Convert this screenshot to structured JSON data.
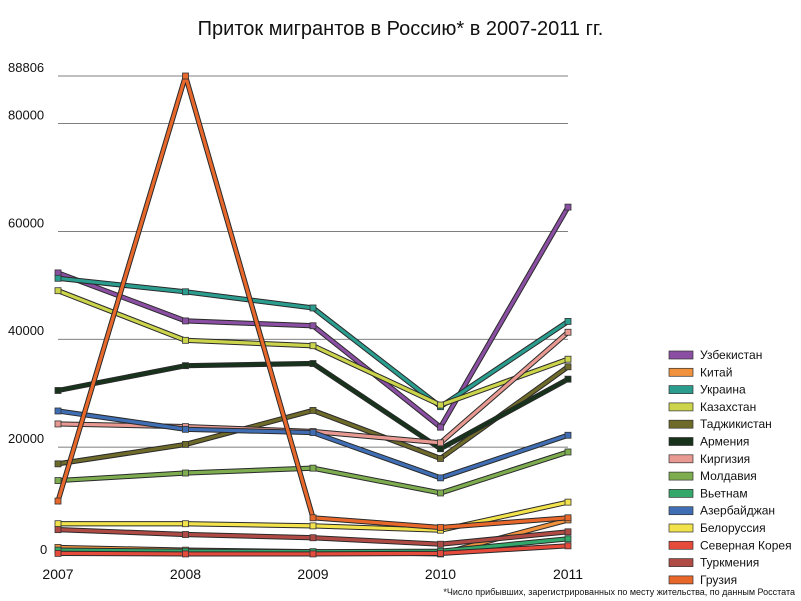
{
  "chart_data": {
    "type": "line",
    "title": "Приток мигрантов в Россию* в 2007-2011 гг.",
    "xlabel": "",
    "ylabel": "",
    "x": [
      "2007",
      "2008",
      "2009",
      "2010",
      "2011"
    ],
    "ylim": [
      0,
      88806
    ],
    "yticks": [
      {
        "value": 0,
        "label": "0"
      },
      {
        "value": 20000,
        "label": "20000"
      },
      {
        "value": 40000,
        "label": "40000"
      },
      {
        "value": 60000,
        "label": "60000"
      },
      {
        "value": 80000,
        "label": "80000"
      },
      {
        "value": 88806,
        "label": "88806"
      }
    ],
    "grid": true,
    "legend_position": "right",
    "series": [
      {
        "name": "Узбекистан",
        "color": "#8a4fa3",
        "values": [
          52300,
          43400,
          42500,
          23700,
          64500
        ]
      },
      {
        "name": "Китай",
        "color": "#f0923e",
        "values": [
          1400,
          900,
          600,
          200,
          6500
        ]
      },
      {
        "name": "Украина",
        "color": "#2a9d8f",
        "values": [
          51300,
          48800,
          45800,
          27500,
          43300
        ]
      },
      {
        "name": "Казахстан",
        "color": "#cbd44a",
        "values": [
          49000,
          39800,
          38800,
          27800,
          36300
        ]
      },
      {
        "name": "Таджикистан",
        "color": "#6e6a2a",
        "values": [
          16900,
          20500,
          26800,
          17900,
          34900
        ]
      },
      {
        "name": "Армения",
        "color": "#17331c",
        "values": [
          30500,
          35100,
          35500,
          19700,
          32600
        ]
      },
      {
        "name": "Киргизия",
        "color": "#e89a92",
        "values": [
          24300,
          23800,
          22900,
          20800,
          41300
        ]
      },
      {
        "name": "Молдавия",
        "color": "#7dad4f",
        "values": [
          13800,
          15200,
          16100,
          11500,
          19100
        ]
      },
      {
        "name": "Вьетнам",
        "color": "#34a86a",
        "values": [
          900,
          700,
          600,
          700,
          3000
        ]
      },
      {
        "name": "Азербайджан",
        "color": "#3f6eb4",
        "values": [
          26700,
          23300,
          22700,
          14300,
          22200
        ]
      },
      {
        "name": "Белоруссия",
        "color": "#f2e34c",
        "values": [
          5800,
          5800,
          5400,
          4600,
          9800
        ]
      },
      {
        "name": "Северная Корея",
        "color": "#e64a3a",
        "values": [
          300,
          200,
          200,
          300,
          1700
        ]
      },
      {
        "name": "Туркмения",
        "color": "#b04a45",
        "values": [
          4700,
          3800,
          3200,
          2000,
          4300
        ]
      },
      {
        "name": "Грузия",
        "color": "#e8672a",
        "values": [
          10000,
          88806,
          6900,
          5100,
          6900
        ]
      }
    ]
  },
  "footnote": "*Число прибывших, зарегистрированных по месту жительства, по данным Росстата"
}
